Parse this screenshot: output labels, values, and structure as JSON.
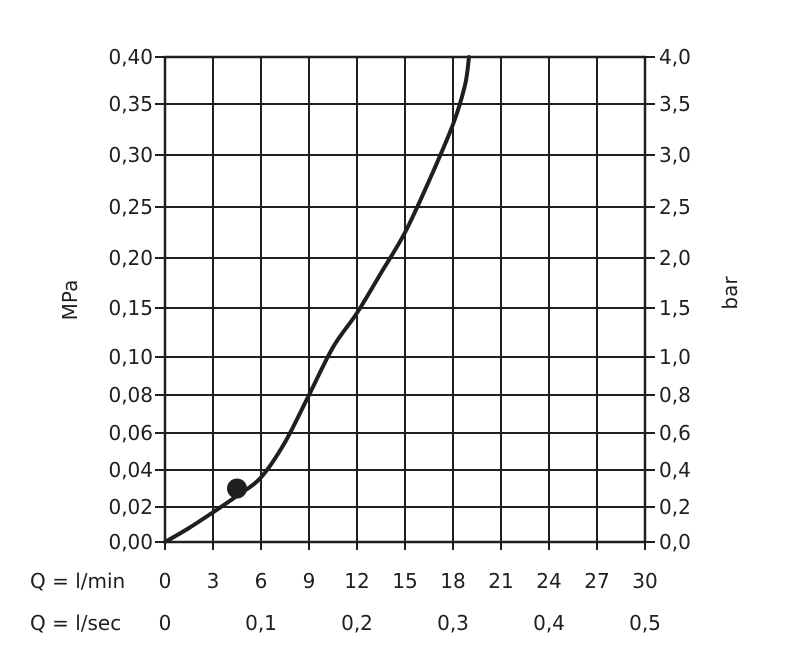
{
  "chart_data": {
    "type": "line",
    "ylabel_left": "MPa",
    "ylabel_right": "bar",
    "left_ticks": [
      "0,00",
      "0,02",
      "0,04",
      "0,06",
      "0,08",
      "0,10",
      "0,15",
      "0,20",
      "0,25",
      "0,30",
      "0,35",
      "0,40"
    ],
    "right_ticks": [
      "0,0",
      "0,2",
      "0,4",
      "0,6",
      "0,8",
      "1,0",
      "1,5",
      "2,0",
      "2,5",
      "3,0",
      "3,5",
      "4,0"
    ],
    "x_row1_label": "Q = l/min",
    "x_row1_ticks": [
      "0",
      "3",
      "6",
      "9",
      "12",
      "15",
      "18",
      "21",
      "24",
      "27",
      "30"
    ],
    "x_row2_label": "Q = l/sec",
    "x_row2_ticks": [
      "0",
      "0,1",
      "0,2",
      "0,3",
      "0,4",
      "0,5"
    ],
    "x_row2_values_lmin": [
      0,
      6,
      12,
      18,
      24,
      30
    ],
    "xlim": [
      0,
      30
    ],
    "grid": true,
    "series": [
      {
        "x_lmin": [
          0,
          1.5,
          3,
          4.5,
          6,
          7.5,
          9,
          10.5,
          12,
          13.5,
          15,
          16.5,
          18,
          18.75,
          19
        ],
        "y_mpa": [
          0,
          0.008,
          0.017,
          0.026,
          0.036,
          0.055,
          0.08,
          0.11,
          0.145,
          0.185,
          0.225,
          0.275,
          0.33,
          0.37,
          0.4
        ]
      }
    ],
    "marker": {
      "x_lmin": 4.5,
      "y_mpa": 0.03
    }
  }
}
